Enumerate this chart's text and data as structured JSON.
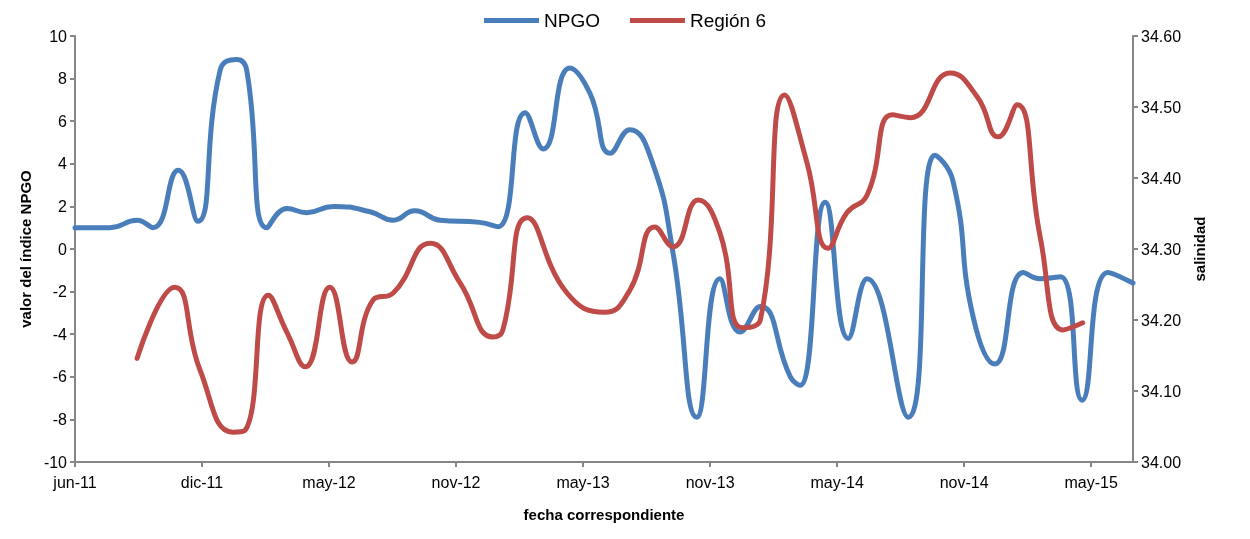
{
  "chart_data": {
    "type": "line",
    "xlabel": "fecha correspondiente",
    "ylabel": "valor del índice NPGO",
    "y2label": "salinidad",
    "xlim": [
      "2011-06-02",
      "2015-07-27"
    ],
    "xticks": [
      {
        "value": "2011-06-02",
        "label": "jun-11"
      },
      {
        "value": "2011-12-01",
        "label": "dic-11"
      },
      {
        "value": "2012-05-31",
        "label": "may-12"
      },
      {
        "value": "2012-11-29",
        "label": "nov-12"
      },
      {
        "value": "2013-05-30",
        "label": "may-13"
      },
      {
        "value": "2013-11-28",
        "label": "nov-13"
      },
      {
        "value": "2014-05-29",
        "label": "may-14"
      },
      {
        "value": "2014-11-27",
        "label": "nov-14"
      },
      {
        "value": "2015-05-28",
        "label": "may-15"
      }
    ],
    "ylim": [
      -10,
      10
    ],
    "yticks": [
      -10,
      -8,
      -6,
      -4,
      -2,
      0,
      2,
      4,
      6,
      8,
      10
    ],
    "y2lim": [
      34.0,
      34.6
    ],
    "y2ticks": [
      {
        "value": 34.0,
        "label": "34.00"
      },
      {
        "value": 34.1,
        "label": "34.10"
      },
      {
        "value": 34.2,
        "label": "34.20"
      },
      {
        "value": 34.3,
        "label": "34.30"
      },
      {
        "value": 34.4,
        "label": "34.40"
      },
      {
        "value": 34.5,
        "label": "34.50"
      },
      {
        "value": 34.6,
        "label": "34.60"
      }
    ],
    "grid": false,
    "legend": "top",
    "marker": "none",
    "line_style": "solid",
    "series": [
      {
        "name": "NPGO",
        "color": "#4a7ebb",
        "x": [
          "2011-06-02",
          "2011-07-22",
          "2011-08-30",
          "2011-09-22",
          "2011-10-28",
          "2011-11-25",
          "2011-12-27",
          "2012-01-20",
          "2012-02-03",
          "2012-03-03",
          "2012-04-01",
          "2012-04-29",
          "2012-06-06",
          "2012-07-29",
          "2012-08-31",
          "2012-10-01",
          "2012-11-06",
          "2013-01-02",
          "2013-01-28",
          "2013-03-08",
          "2013-04-03",
          "2013-05-11",
          "2013-06-09",
          "2013-07-08",
          "2013-08-05",
          "2013-09-07",
          "2013-10-06",
          "2013-11-09",
          "2013-12-12",
          "2014-01-10",
          "2014-02-08",
          "2014-03-23",
          "2014-04-06",
          "2014-05-12",
          "2014-06-14",
          "2014-07-11",
          "2014-09-08",
          "2014-10-16",
          "2014-11-11",
          "2014-12-10",
          "2015-01-10",
          "2015-02-20",
          "2015-03-16",
          "2015-04-14",
          "2015-05-15",
          "2015-06-21",
          "2015-07-27"
        ],
        "values": [
          1.0,
          1.0,
          1.35,
          1.0,
          3.7,
          1.3,
          8.4,
          8.9,
          8.4,
          1.0,
          1.9,
          1.7,
          2.0,
          1.75,
          1.35,
          1.8,
          1.35,
          1.25,
          1.05,
          6.4,
          4.7,
          8.5,
          7.3,
          4.5,
          5.6,
          4.0,
          -0.2,
          -7.9,
          -1.4,
          -3.9,
          -2.7,
          -6.0,
          -6.4,
          2.2,
          -4.2,
          -1.4,
          -7.9,
          4.4,
          3.2,
          -3.2,
          -5.4,
          -1.1,
          -1.4,
          -1.3,
          -7.1,
          -1.1,
          -1.6
        ]
      },
      {
        "name": "Región 6",
        "color": "#be4b48",
        "axis": "y2",
        "x": [
          "2011-08-30",
          "2011-10-23",
          "2011-11-28",
          "2012-01-14",
          "2012-02-01",
          "2012-03-05",
          "2012-04-01",
          "2012-04-27",
          "2012-06-01",
          "2012-07-03",
          "2012-08-02",
          "2012-08-31",
          "2012-10-23",
          "2012-12-05",
          "2013-01-21",
          "2013-02-04",
          "2013-03-11",
          "2013-05-07",
          "2013-06-30",
          "2013-08-05",
          "2013-09-10",
          "2013-10-06",
          "2013-11-11",
          "2013-12-12",
          "2014-01-13",
          "2014-02-08",
          "2014-03-15",
          "2014-04-16",
          "2014-05-16",
          "2014-06-12",
          "2014-07-11",
          "2014-08-16",
          "2014-09-11",
          "2014-11-07",
          "2014-12-16",
          "2015-01-15",
          "2015-02-11",
          "2015-03-16",
          "2015-04-18",
          "2015-05-16"
        ],
        "values": [
          34.146,
          34.246,
          34.13,
          34.042,
          34.045,
          34.235,
          34.182,
          34.134,
          34.246,
          34.141,
          34.228,
          34.238,
          34.308,
          34.252,
          34.176,
          34.186,
          34.344,
          34.238,
          34.211,
          34.242,
          34.331,
          34.303,
          34.369,
          34.323,
          34.189,
          34.2,
          34.517,
          34.421,
          34.301,
          34.351,
          34.376,
          34.489,
          34.485,
          34.548,
          34.514,
          34.458,
          34.503,
          34.317,
          34.186,
          34.196
        ]
      }
    ]
  }
}
